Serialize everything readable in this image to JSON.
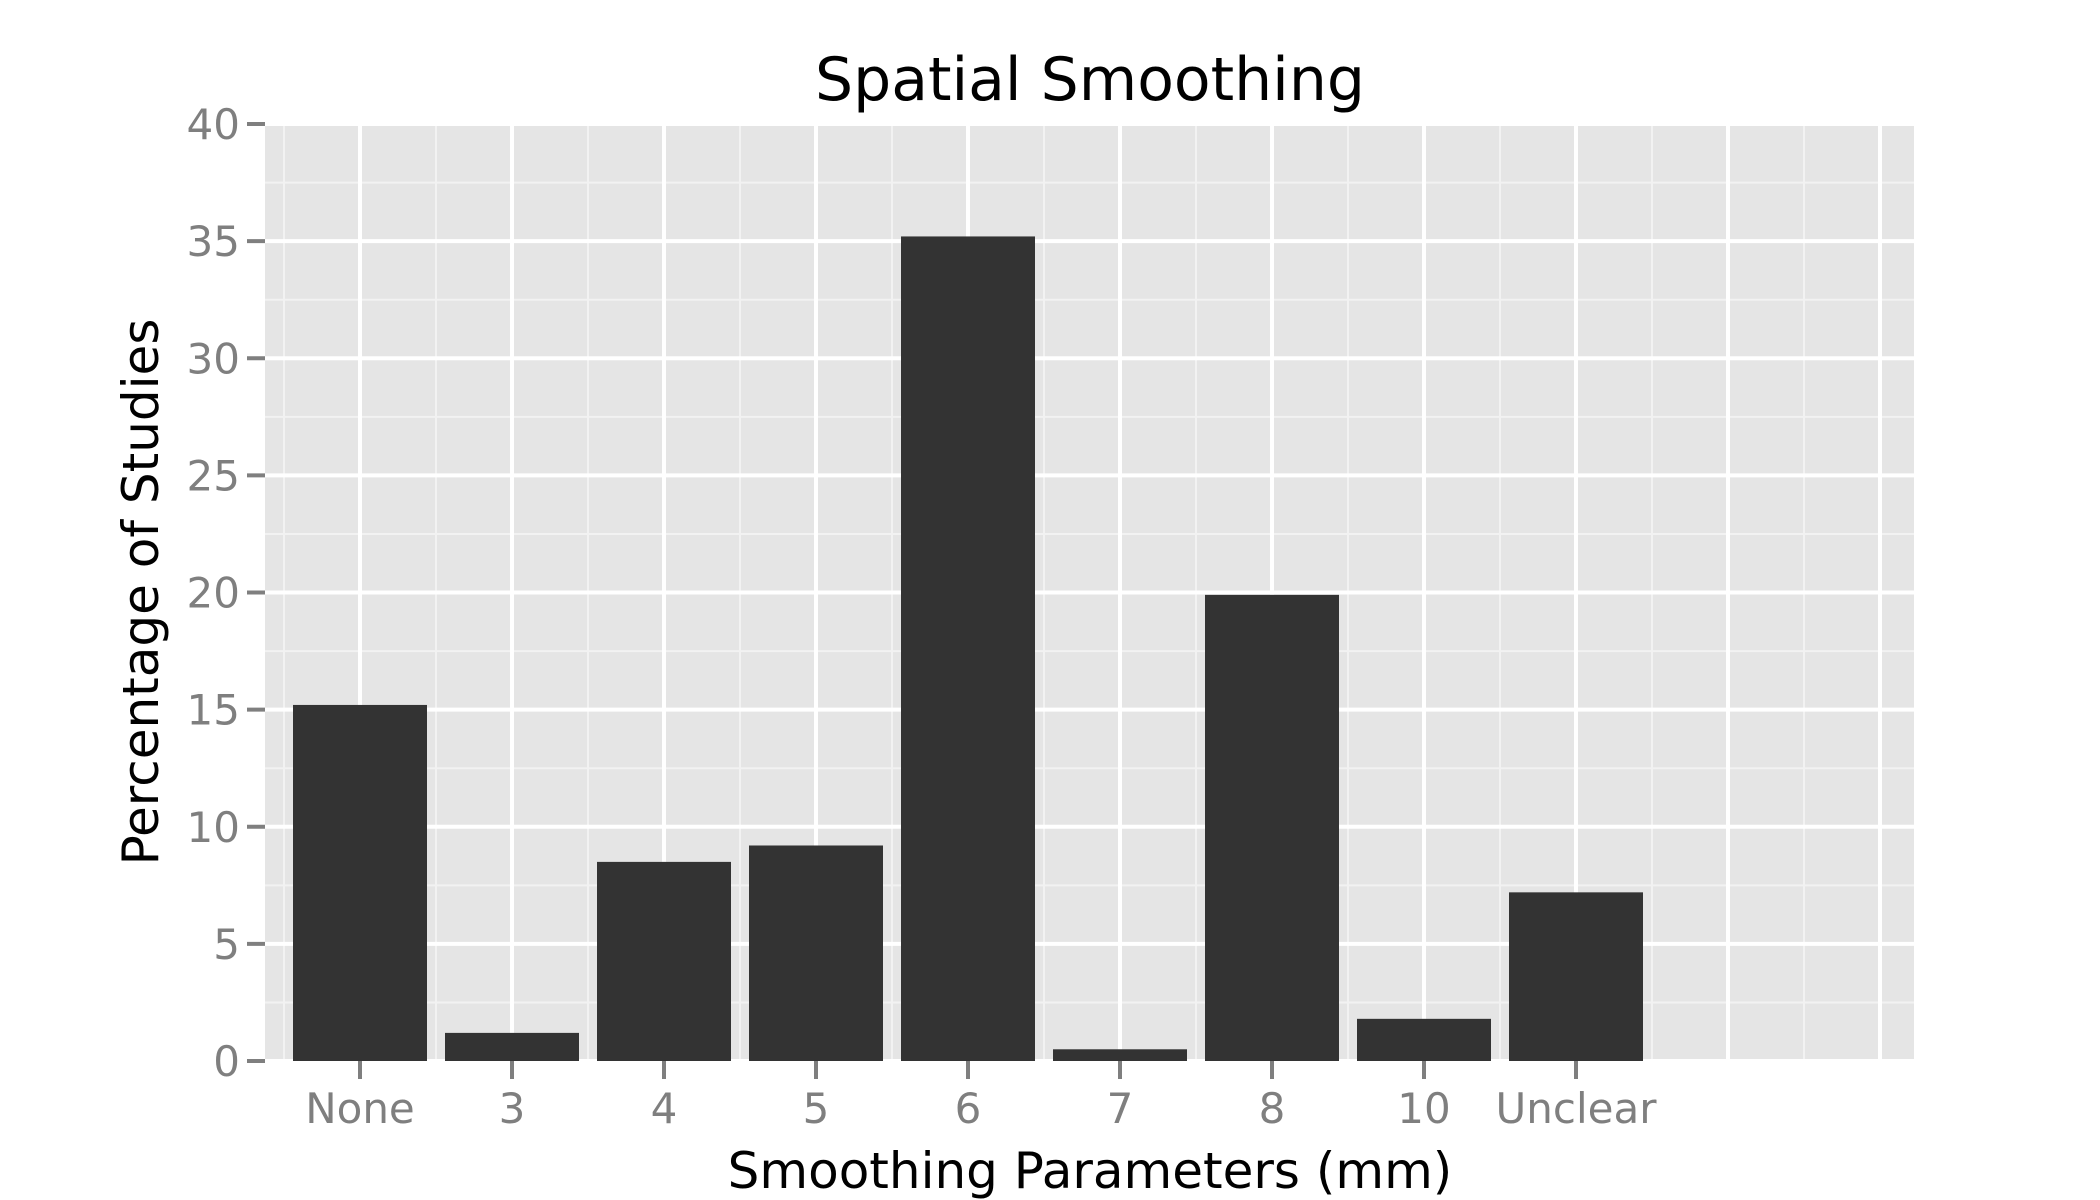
{
  "chart_data": {
    "type": "bar",
    "title": "Spatial Smoothing",
    "xlabel": "Smoothing Parameters (mm)",
    "ylabel": "Percentage of Studies",
    "categories": [
      "None",
      "3",
      "4",
      "5",
      "6",
      "7",
      "8",
      "10",
      "Unclear"
    ],
    "values": [
      15.2,
      1.2,
      8.5,
      9.2,
      35.2,
      0.5,
      19.9,
      1.8,
      7.2
    ],
    "ylim": [
      0,
      40
    ],
    "yticks": [
      0,
      5,
      10,
      15,
      20,
      25,
      30,
      35,
      40
    ],
    "grid": true,
    "legend": "none",
    "colors": {
      "bar": "#333333",
      "panel": "#e5e5e5",
      "grid_major": "#ffffff",
      "grid_minor": "#f2f2f2",
      "tick_text": "#7f7f7f",
      "tick_mark": "#7f7f7f"
    }
  }
}
